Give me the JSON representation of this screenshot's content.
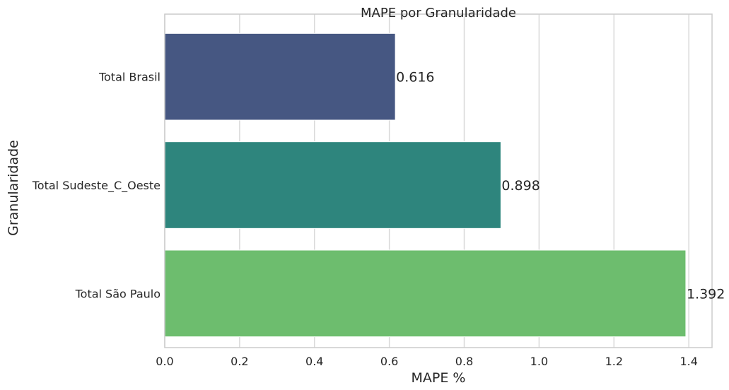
{
  "chart_data": {
    "type": "bar",
    "orientation": "horizontal",
    "title": "MAPE por Granularidade",
    "xlabel": "MAPE %",
    "ylabel": "Granularidade",
    "categories": [
      "Total Brasil",
      "Total Sudeste_C_Oeste",
      "Total São Paulo"
    ],
    "values": [
      0.616,
      0.898,
      1.392
    ],
    "data_labels": [
      "0.616",
      "0.898",
      "1.392"
    ],
    "bar_colors": [
      "#465782",
      "#2e857d",
      "#6dbd6e"
    ],
    "xlim": [
      0,
      1.462
    ],
    "xticks": [
      0,
      0.2,
      0.4,
      0.6,
      0.8,
      1.0,
      1.2,
      1.4
    ],
    "xtick_labels": [
      "0.0",
      "0.2",
      "0.4",
      "0.6",
      "0.8",
      "1.0",
      "1.2",
      "1.4"
    ],
    "grid": "vertical",
    "style": "whitegrid"
  }
}
